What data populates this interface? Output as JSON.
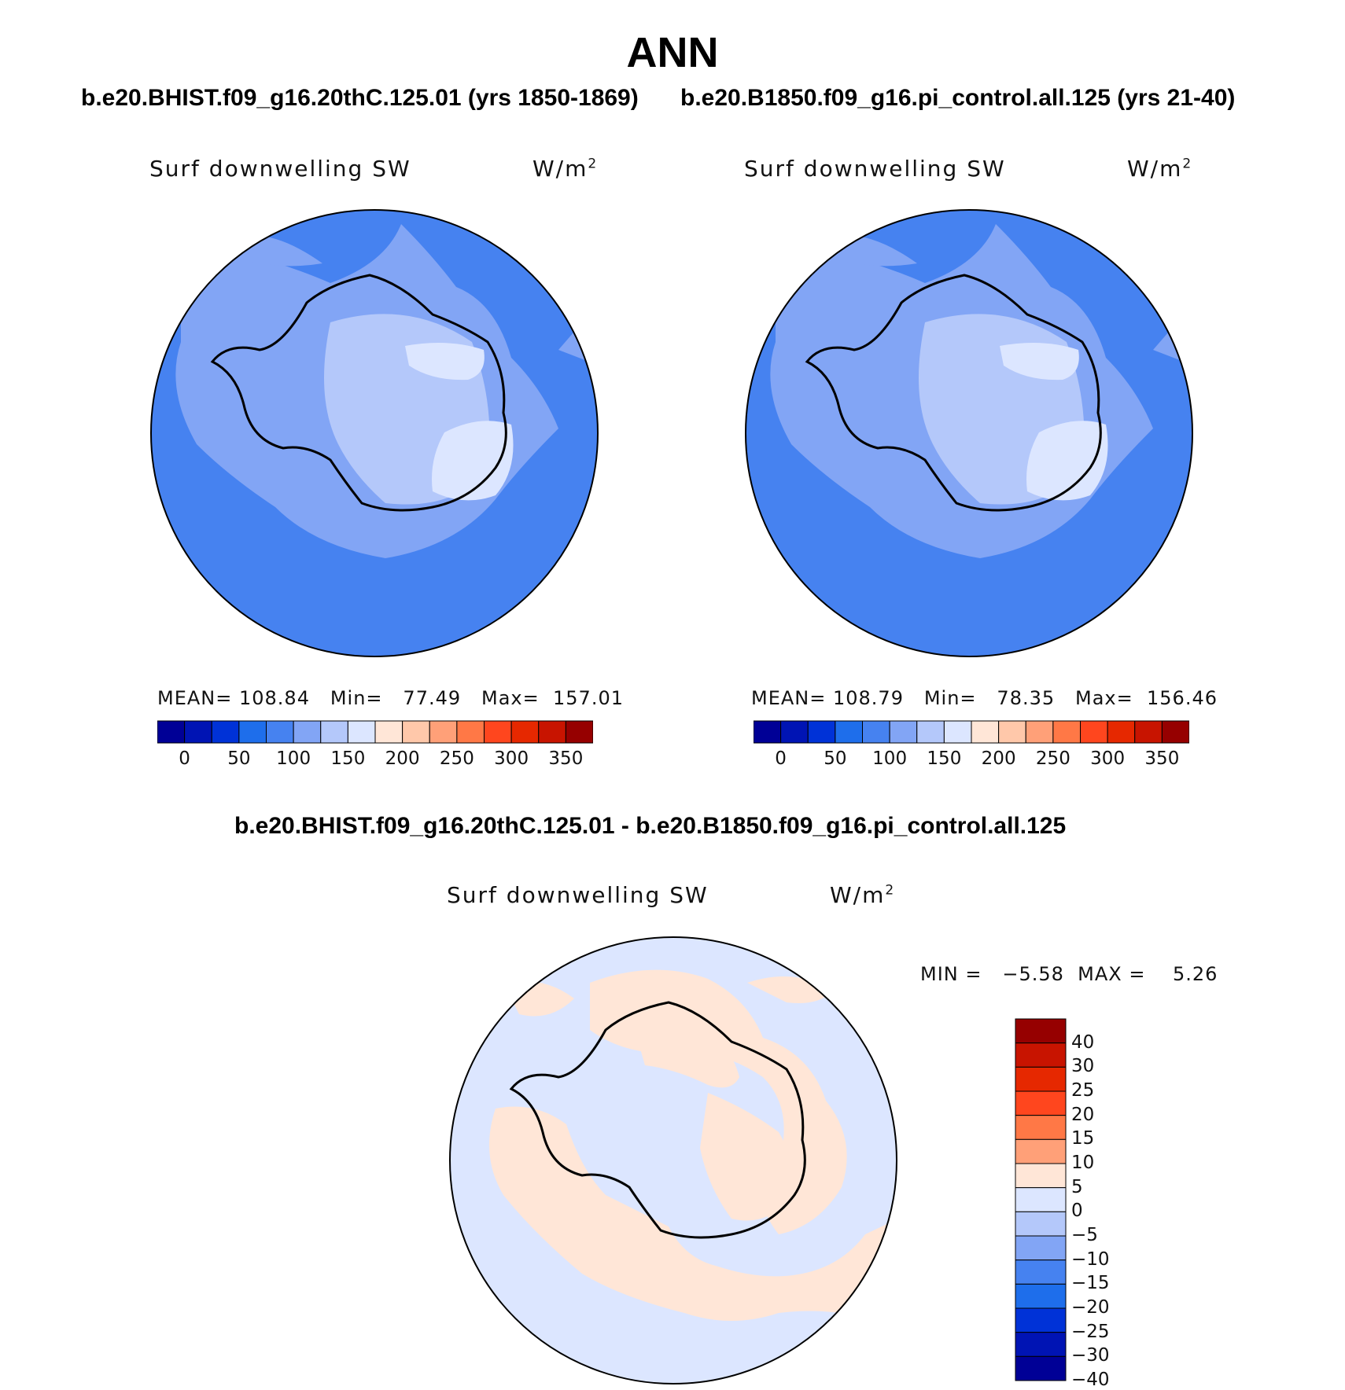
{
  "title": "ANN",
  "left_case_title": "b.e20.BHIST.f09_g16.20thC.125.01 (yrs 1850-1869)",
  "right_case_title": "b.e20.B1850.f09_g16.pi_control.all.125 (yrs 21-40)",
  "diff_title": "b.e20.BHIST.f09_g16.20thC.125.01 - b.e20.B1850.f09_g16.pi_control.all.125",
  "panels": [
    {
      "variable": "Surf downwelling SW",
      "units": "W/m",
      "units_sup": "2",
      "stats": "MEAN= 108.84   Min=   77.49   Max=  157.01"
    },
    {
      "variable": "Surf downwelling SW",
      "units": "W/m",
      "units_sup": "2",
      "stats": "MEAN= 108.79   Min=   78.35   Max=  156.46"
    },
    {
      "variable": "Surf downwelling SW",
      "units": "W/m",
      "units_sup": "2",
      "stats": "MIN =   −5.58  MAX =    5.26"
    }
  ],
  "main_colorbar": {
    "colors": [
      "#000096",
      "#0014B4",
      "#0032D7",
      "#1E6EEB",
      "#4682F0",
      "#82A5F5",
      "#B4C8FA",
      "#DCE6FF",
      "#FFE6D7",
      "#FFC8AA",
      "#FFA078",
      "#FF7846",
      "#FF461E",
      "#E62800",
      "#C81400",
      "#960000"
    ],
    "labels": [
      "0",
      "50",
      "100",
      "150",
      "200",
      "250",
      "300",
      "350"
    ]
  },
  "diff_colorbar": {
    "colors": [
      "#960000",
      "#C81400",
      "#E62800",
      "#FF461E",
      "#FF7846",
      "#FFA078",
      "#FFE6D7",
      "#DCE6FF",
      "#B4C8FA",
      "#82A5F5",
      "#4682F0",
      "#1E6EEB",
      "#0032D7",
      "#0014B4",
      "#000096"
    ],
    "labels": [
      "40",
      "30",
      "25",
      "20",
      "15",
      "10",
      "5",
      "0",
      "−5",
      "−10",
      "−15",
      "−20",
      "−25",
      "−30",
      "−40"
    ]
  }
}
